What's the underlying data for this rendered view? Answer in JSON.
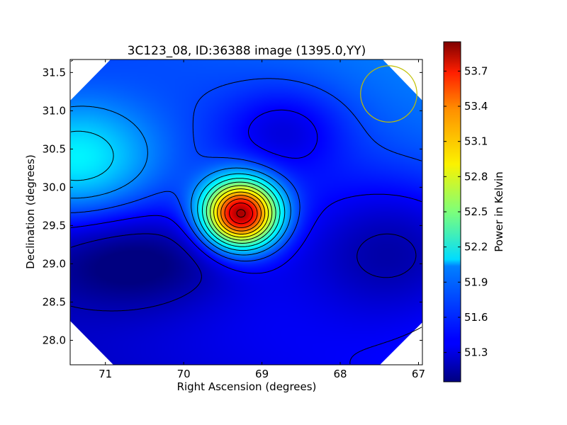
{
  "chart_data": {
    "type": "heatmap",
    "title": "3C123_08, ID:36388 image (1395.0,YY)",
    "xlabel": "Right Ascension (degrees)",
    "ylabel": "Declination (degrees)",
    "xlim": [
      71.45,
      66.95
    ],
    "ylim": [
      27.68,
      31.67
    ],
    "x_ticks": [
      71,
      70,
      69,
      68,
      67
    ],
    "y_ticks": [
      28.0,
      28.5,
      29.0,
      29.5,
      30.0,
      30.5,
      31.0,
      31.5
    ],
    "x_tick_labels": [
      "71",
      "70",
      "69",
      "68",
      "67"
    ],
    "y_tick_labels": [
      "28.0",
      "28.5",
      "29.0",
      "29.5",
      "30.0",
      "30.5",
      "31.0",
      "31.5"
    ],
    "colorbar": {
      "label": "Power in Kelvin",
      "colormap": "jet",
      "range": [
        51.05,
        53.95
      ],
      "ticks": [
        51.3,
        51.6,
        51.9,
        52.2,
        52.5,
        52.8,
        53.1,
        53.4,
        53.7
      ],
      "tick_labels": [
        "51.3",
        "51.6",
        "51.9",
        "52.2",
        "52.5",
        "52.8",
        "53.1",
        "53.4",
        "53.7"
      ]
    },
    "peak": {
      "ra": 69.27,
      "dec": 29.65,
      "value": 53.9
    },
    "features": [
      {
        "kind": "minimum",
        "ra": 68.7,
        "dec": 30.75,
        "value": 51.2
      },
      {
        "kind": "maximum",
        "ra": 71.4,
        "dec": 30.35,
        "value": 52.15
      },
      {
        "kind": "minimum",
        "ra": 70.6,
        "dec": 29.05,
        "value": 51.1
      },
      {
        "kind": "minimum",
        "ra": 67.3,
        "dec": 29.2,
        "value": 51.1
      }
    ],
    "beam_circle": {
      "ra": 67.38,
      "dec": 31.22,
      "radius_deg": 0.36,
      "color": "#bfbf00"
    },
    "grid": false,
    "contour_color": "#000000"
  }
}
